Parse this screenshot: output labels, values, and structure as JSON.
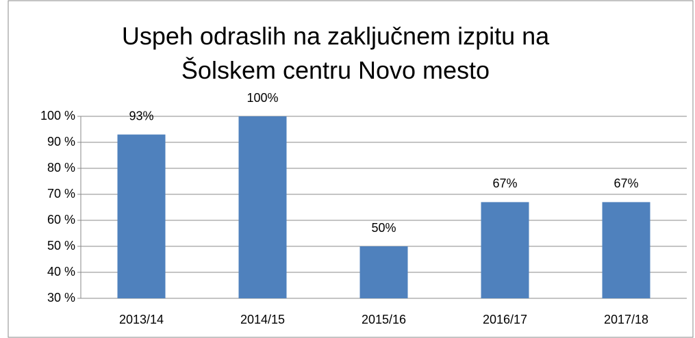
{
  "chart_data": {
    "type": "bar",
    "title": "Uspeh odraslih na zaključnem izpitu na Šolskem centru Novo mesto",
    "categories": [
      "2013/14",
      "2014/15",
      "2015/16",
      "2016/17",
      "2017/18"
    ],
    "values": [
      93,
      100,
      50,
      67,
      67
    ],
    "value_labels": [
      "93%",
      "100%",
      "50%",
      "67%",
      "67%"
    ],
    "color": "#4f81bd",
    "ylim": [
      30,
      100
    ],
    "yticks": [
      {
        "value": 30,
        "label": "30 %"
      },
      {
        "value": 40,
        "label": "40 %"
      },
      {
        "value": 50,
        "label": "50 %"
      },
      {
        "value": 60,
        "label": "60 %"
      },
      {
        "value": 70,
        "label": "70 %"
      },
      {
        "value": 80,
        "label": "80 %"
      },
      {
        "value": 90,
        "label": "90 %"
      },
      {
        "value": 100,
        "label": "100 %"
      }
    ],
    "grid": true
  }
}
